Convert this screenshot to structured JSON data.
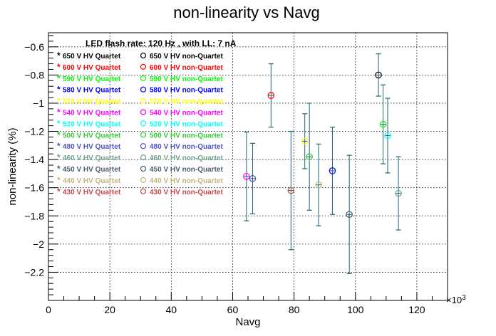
{
  "chart_data": {
    "type": "scatter",
    "title": "non-linearity vs Navg",
    "subtitle": "LED flash rate: 120 Hz , with LL: 7 nA",
    "xlabel": "Navg",
    "ylabel": "non-linearity (%)",
    "x_exponent_label": "×10",
    "x_exponent_power": "3",
    "xlim": [
      0,
      130000
    ],
    "ylim": [
      -2.4,
      -0.5
    ],
    "x_ticks": [
      0,
      20000,
      40000,
      60000,
      80000,
      100000,
      120000
    ],
    "x_tick_labels": [
      "0",
      "20",
      "40",
      "60",
      "80",
      "100",
      "120"
    ],
    "y_ticks": [
      -2.2,
      -2.0,
      -1.8,
      -1.6,
      -1.4,
      -1.2,
      -1.0,
      -0.8,
      -0.6
    ],
    "y_tick_labels": [
      "−2.2",
      "−2",
      "−1.8",
      "−1.6",
      "−1.4",
      "−1.2",
      "−1",
      "−0.8",
      "−0.6"
    ],
    "grid": true,
    "legend_placement": "top-left",
    "errorbar_color": "#1f6670",
    "series": [
      {
        "name": "650 V HV non-Quartet",
        "marker": "open-circle",
        "color": "#000000",
        "points": [
          {
            "x": 107500,
            "y": -0.8,
            "yerr_low": 0.15,
            "yerr_high": 0.15
          }
        ]
      },
      {
        "name": "600 V HV non-Quartet",
        "marker": "open-circle",
        "color": "#ff0000",
        "points": [
          {
            "x": 72500,
            "y": -0.945,
            "yerr_low": 0.225,
            "yerr_high": 0.225
          }
        ]
      },
      {
        "name": "590 V HV non-Quartet",
        "marker": "open-circle",
        "color": "#00ff00",
        "points": [
          {
            "x": 109000,
            "y": -1.15,
            "yerr_low": 0.28,
            "yerr_high": 0.28
          }
        ]
      },
      {
        "name": "580 V HV non-Quartet",
        "marker": "open-circle",
        "color": "#0000ff",
        "points": [
          {
            "x": 92500,
            "y": -1.48,
            "yerr_low": 0.31,
            "yerr_high": 0.31
          }
        ]
      },
      {
        "name": "570 V HV non-Quartet",
        "marker": "open-circle",
        "color": "#ffff00",
        "points": [
          {
            "x": 83500,
            "y": -1.27,
            "yerr_low": 0.195,
            "yerr_high": 0.195
          }
        ]
      },
      {
        "name": "540 V HV non-Quartet",
        "marker": "open-circle",
        "color": "#ff00ff",
        "points": [
          {
            "x": 64500,
            "y": -1.52,
            "yerr_low": 0.315,
            "yerr_high": 0.315
          }
        ]
      },
      {
        "name": "520 V HV non-Quartet",
        "marker": "open-circle",
        "color": "#00ffff",
        "points": [
          {
            "x": 110500,
            "y": -1.23,
            "yerr_low": 0.265,
            "yerr_high": 0.265
          }
        ]
      },
      {
        "name": "500 V HV non-Quartet",
        "marker": "open-circle",
        "color": "#33cc33",
        "points": [
          {
            "x": 85000,
            "y": -1.38,
            "yerr_low": 0.38,
            "yerr_high": 0.38
          }
        ]
      },
      {
        "name": "480 V HV non-Quartet",
        "marker": "open-circle",
        "color": "#5050c8",
        "points": [
          {
            "x": 66500,
            "y": -1.535,
            "yerr_low": 0.25,
            "yerr_high": 0.25
          }
        ]
      },
      {
        "name": "460 V HV non-Quartet",
        "marker": "open-circle",
        "color": "#70a090",
        "points": [
          {
            "x": 114000,
            "y": -1.64,
            "yerr_low": 0.26,
            "yerr_high": 0.26
          }
        ]
      },
      {
        "name": "450 V HV non-Quartet",
        "marker": "open-circle",
        "color": "#4a5f6f",
        "points": [
          {
            "x": 98000,
            "y": -1.79,
            "yerr_low": 0.42,
            "yerr_high": 0.42
          }
        ]
      },
      {
        "name": "440 V HV non-Quartet",
        "marker": "open-circle",
        "color": "#c4b47a",
        "points": [
          {
            "x": 88000,
            "y": -1.58,
            "yerr_low": 0.29,
            "yerr_high": 0.29
          }
        ]
      },
      {
        "name": "430 V HV non-Quartet",
        "marker": "open-circle",
        "color": "#c84848",
        "points": [
          {
            "x": 79000,
            "y": -1.62,
            "yerr_low": 0.42,
            "yerr_high": 0.42
          }
        ]
      }
    ],
    "legend": [
      {
        "left": "650 V HV Quartet",
        "right": "650 V HV non-Quartet",
        "color": "#000000"
      },
      {
        "left": "600 V HV Quartet",
        "right": "600 V HV non-Quartet",
        "color": "#ff0000"
      },
      {
        "left": "590 V HV Quartet",
        "right": "590 V HV non-Quartet",
        "color": "#00ff00"
      },
      {
        "left": "580 V HV Quartet",
        "right": "580 V HV non-Quartet",
        "color": "#0000ff"
      },
      {
        "left": "570 V HV Quartet",
        "right": "570 V HV non-Quartet",
        "color": "#ffff00"
      },
      {
        "left": "540 V HV Quartet",
        "right": "540 V HV non-Quartet",
        "color": "#ff00ff"
      },
      {
        "left": "520 V HV Quartet",
        "right": "520 V HV non-Quartet",
        "color": "#00ffff"
      },
      {
        "left": "500 V HV Quartet",
        "right": "500 V HV non-Quartet",
        "color": "#33cc33"
      },
      {
        "left": "480 V HV Quartet",
        "right": "480 V HV non-Quartet",
        "color": "#5050c8"
      },
      {
        "left": "460 V HV Quartet",
        "right": "460 V HV non-Quartet",
        "color": "#70a090"
      },
      {
        "left": "450 V HV Quartet",
        "right": "450 V HV non-Quartet",
        "color": "#4a5f6f"
      },
      {
        "left": "440 V HV Quartet",
        "right": "440 V HV non-Quartet",
        "color": "#c4b47a"
      },
      {
        "left": "430 V HV Quartet",
        "right": "430 V HV non-Quartet",
        "color": "#c84848"
      }
    ]
  }
}
